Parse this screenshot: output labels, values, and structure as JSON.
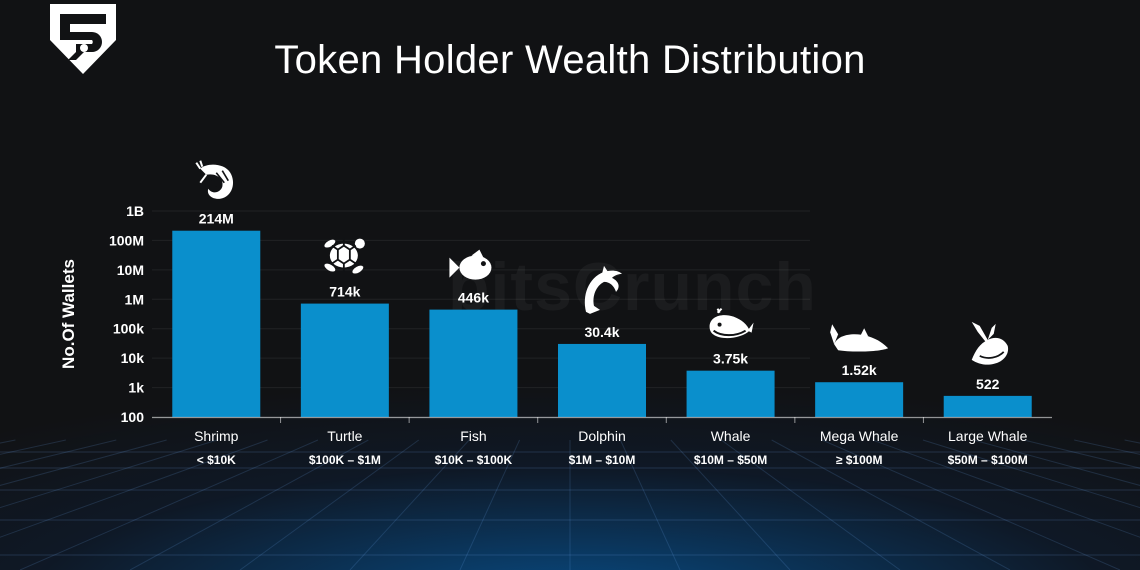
{
  "title": "Token Holder Wealth Distribution",
  "watermark": "bitsCrunch",
  "brand": {
    "logo_icon": "bitscrunch-shield-logo-icon",
    "accent": "#0a8fcc"
  },
  "chart_data": {
    "type": "bar",
    "title": "Token Holder Wealth Distribution",
    "xlabel": "",
    "ylabel": "No.Of Wallets",
    "yscale": "log",
    "ylim": [
      100,
      1000000000
    ],
    "yticks": [
      "1B",
      "100M",
      "10M",
      "1M",
      "100k",
      "10k",
      "1k",
      "100"
    ],
    "grid": true,
    "bar_color": "#0a8fcc",
    "categories": [
      "Shrimp",
      "Turtle",
      "Fish",
      "Dolphin",
      "Whale",
      "Mega  Whale",
      "Large Whale"
    ],
    "ranges": [
      "< $10K",
      "$100K – $1M",
      "$10K – $100K",
      "$1M – $10M",
      "$10M – $50M",
      "≥ $100M",
      "$50M – $100M"
    ],
    "values": [
      214000000,
      714000,
      446000,
      30400,
      3750,
      1520,
      522
    ],
    "value_labels": [
      "214M",
      "714k",
      "446k",
      "30.4k",
      "3.75k",
      "1.52k",
      "522"
    ],
    "icons": [
      "shrimp-icon",
      "turtle-icon",
      "fish-icon",
      "dolphin-icon",
      "whale-icon",
      "mega-whale-icon",
      "large-whale-icon"
    ]
  }
}
